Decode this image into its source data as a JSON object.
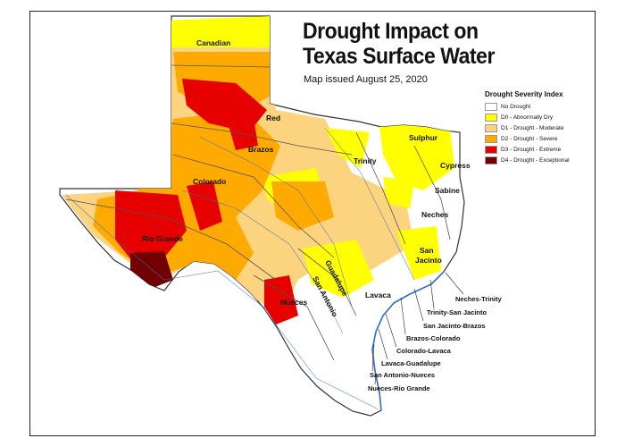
{
  "title": {
    "line1": "Drought Impact on",
    "line2": "Texas Surface Water"
  },
  "subtitle": "Map issued August 25, 2020",
  "legend": {
    "title": "Drought Severity Index",
    "items": [
      {
        "label": "No Drought",
        "color": "#ffffff"
      },
      {
        "label": "D0 - Abnormally Dry",
        "color": "#ffff00"
      },
      {
        "label": "D1 - Drought - Moderate",
        "color": "#fcd37f"
      },
      {
        "label": "D2 - Drought - Severe",
        "color": "#ffaa00"
      },
      {
        "label": "D3 - Drought - Extreme",
        "color": "#e60000"
      },
      {
        "label": "D4 - Drought - Exceptional",
        "color": "#730000"
      }
    ]
  },
  "basins": {
    "canadian": "Canadian",
    "red": "Red",
    "brazos": "Brazos",
    "colorado": "Colorado",
    "rio_grande": "Rio Grande",
    "trinity": "Trinity",
    "sulphur": "Sulphur",
    "cypress": "Cypress",
    "sabine": "Sabine",
    "neches": "Neches",
    "san_jacinto_1": "San",
    "san_jacinto_2": "Jacinto",
    "nueces": "Nueces",
    "san_antonio": "San Antonio",
    "guadalupe": "Guadalupe",
    "lavaca": "Lavaca"
  },
  "coastal_basins": [
    "Neches-Trinity",
    "Trinity-San Jacinto",
    "San Jacinto-Brazos",
    "Brazos-Colorado",
    "Colorado-Lavaca",
    "Lavaca-Guadalupe",
    "San Antonio-Nueces",
    "Nueces-Rio Grande"
  ]
}
